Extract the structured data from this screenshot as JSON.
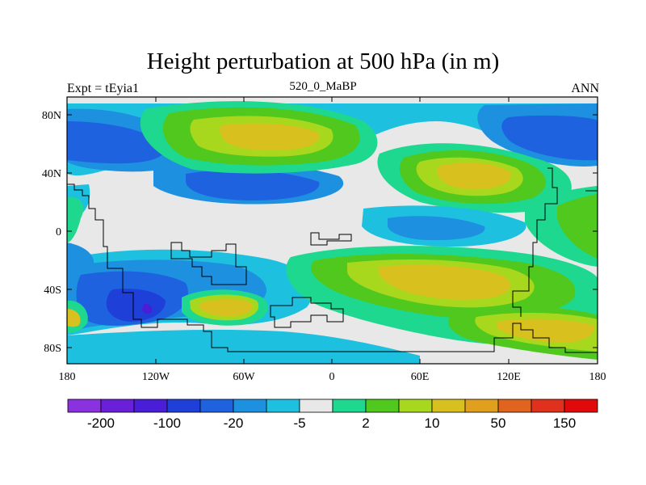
{
  "title": "Height perturbation at 500 hPa (in m)",
  "left_label": "Expt = tEyia1",
  "center_label": "520_0_MaBP",
  "right_label": "ANN",
  "lat_ticks": [
    "80N",
    "40N",
    "0",
    "40S",
    "80S"
  ],
  "lon_ticks": [
    "180",
    "120W",
    "60W",
    "0",
    "60E",
    "120E",
    "180"
  ],
  "colorbar": {
    "colors": [
      "#8b32e0",
      "#6a1fd8",
      "#4a1ed8",
      "#1e3fd8",
      "#1e62e0",
      "#1e90e0",
      "#1ec0e0",
      "#e8e8e8",
      "#1ed890",
      "#50c81e",
      "#a8d81e",
      "#d8c01e",
      "#e0a01e",
      "#e0641e",
      "#e0301e",
      "#e00a0a"
    ],
    "labels": [
      "-200",
      "-100",
      "-20",
      "-5",
      "2",
      "10",
      "50",
      "150"
    ]
  },
  "map_colors": {
    "background": "#e8e8e8",
    "cyan": "#1ec0e0",
    "light_blue": "#1e90e0",
    "mid_blue": "#1e62e0",
    "deep_blue": "#1e3fd8",
    "violet": "#4a1ed8",
    "green_light": "#1ed890",
    "green": "#50c81e",
    "yellow_green": "#a8d81e",
    "yellow": "#d8c01e",
    "orange": "#e0a01e"
  }
}
